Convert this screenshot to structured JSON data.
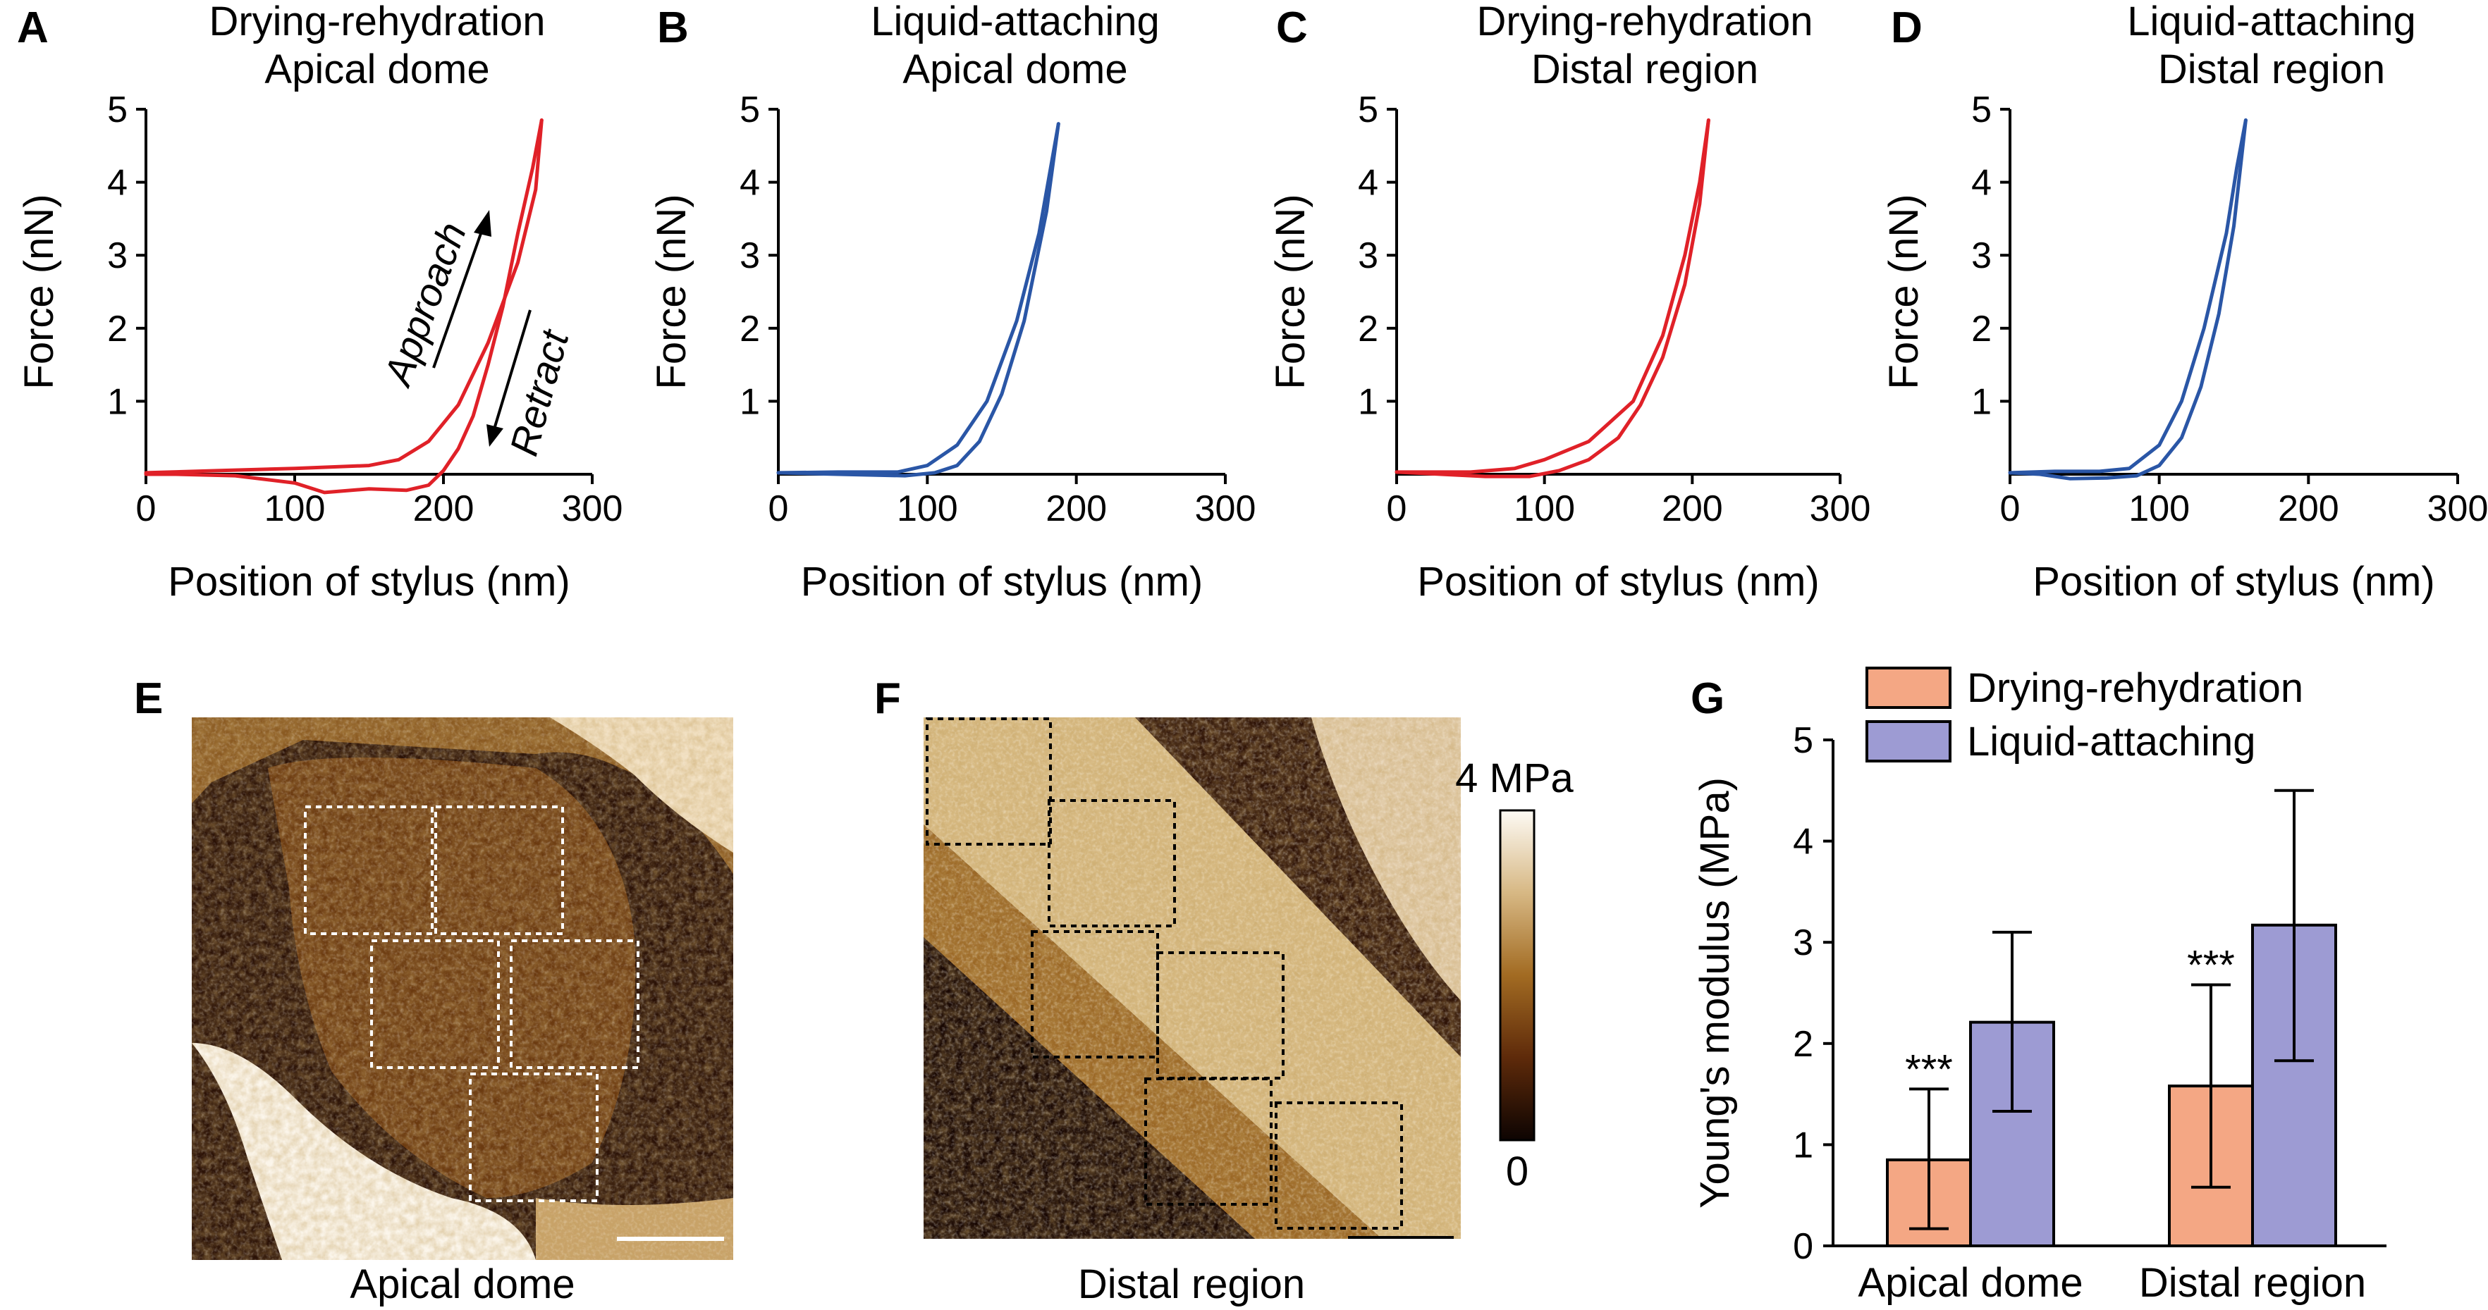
{
  "colors": {
    "drying": "#e02128",
    "liquid": "#2a56a6",
    "bar_drying": "#f4a784",
    "bar_liquid": "#9d9bd3",
    "afm_dark": "#1a0903",
    "afm_mid": "#8f5a1c",
    "afm_light": "#fbf5ea"
  },
  "labels": {
    "A": "A",
    "B": "B",
    "C": "C",
    "D": "D",
    "E": "E",
    "F": "F",
    "G": "G",
    "title_A_1": "Drying-rehydration",
    "title_A_2": "Apical dome",
    "title_B_1": "Liquid-attaching",
    "title_B_2": "Apical dome",
    "title_C_1": "Drying-rehydration",
    "title_C_2": "Distal region",
    "title_D_1": "Liquid-attaching",
    "title_D_2": "Distal region",
    "approach": "Approach",
    "retract": "Retract",
    "caption_E": "Apical dome",
    "caption_F": "Distal region",
    "colorbar_max": "4 MPa",
    "colorbar_min": "0"
  },
  "chart_data": [
    {
      "panel": "A",
      "type": "line",
      "title": [
        "Drying-rehydration",
        "Apical dome"
      ],
      "xlabel": "Position of stylus (nm)",
      "ylabel": "Force (nN)",
      "xlim": [
        0,
        300
      ],
      "ylim": [
        0,
        5
      ],
      "xticks": [
        0,
        100,
        200,
        300
      ],
      "yticks": [
        1,
        2,
        3,
        4,
        5
      ],
      "series": [
        {
          "color": "drying",
          "x": [
            0,
            50,
            100,
            150,
            170,
            190,
            210,
            230,
            250,
            262,
            266
          ],
          "y": [
            0.02,
            0.05,
            0.08,
            0.12,
            0.2,
            0.45,
            0.95,
            1.8,
            2.9,
            3.9,
            4.85
          ]
        },
        {
          "color": "drying",
          "x": [
            266,
            260,
            250,
            240,
            230,
            220,
            210,
            200,
            190,
            175,
            150,
            120,
            100,
            60,
            20,
            0
          ],
          "y": [
            4.85,
            4.2,
            3.3,
            2.3,
            1.5,
            0.8,
            0.35,
            0.05,
            -0.15,
            -0.22,
            -0.2,
            -0.25,
            -0.12,
            -0.02,
            0.0,
            0.0
          ]
        }
      ]
    },
    {
      "panel": "B",
      "type": "line",
      "title": [
        "Liquid-attaching",
        "Apical dome"
      ],
      "xlabel": "Position of stylus (nm)",
      "ylabel": "Force (nN)",
      "xlim": [
        0,
        300
      ],
      "ylim": [
        0,
        5
      ],
      "xticks": [
        0,
        100,
        200,
        300
      ],
      "yticks": [
        1,
        2,
        3,
        4,
        5
      ],
      "series": [
        {
          "color": "liquid",
          "x": [
            0,
            40,
            80,
            100,
            120,
            140,
            160,
            175,
            188
          ],
          "y": [
            0.02,
            0.03,
            0.03,
            0.12,
            0.4,
            1.0,
            2.1,
            3.3,
            4.8
          ]
        },
        {
          "color": "liquid",
          "x": [
            188,
            180,
            165,
            150,
            135,
            120,
            105,
            85,
            40,
            0
          ],
          "y": [
            4.8,
            3.6,
            2.1,
            1.1,
            0.45,
            0.12,
            0.02,
            -0.02,
            0.0,
            0.02
          ]
        }
      ]
    },
    {
      "panel": "C",
      "type": "line",
      "title": [
        "Drying-rehydration",
        "Distal region"
      ],
      "xlabel": "Position of stylus (nm)",
      "ylabel": "Force (nN)",
      "xlim": [
        0,
        300
      ],
      "ylim": [
        0,
        5
      ],
      "xticks": [
        0,
        100,
        200,
        300
      ],
      "yticks": [
        1,
        2,
        3,
        4,
        5
      ],
      "series": [
        {
          "color": "drying",
          "x": [
            0,
            50,
            80,
            100,
            130,
            160,
            180,
            195,
            205,
            211
          ],
          "y": [
            0.03,
            0.03,
            0.08,
            0.2,
            0.45,
            1.0,
            1.9,
            3.0,
            4.0,
            4.85
          ]
        },
        {
          "color": "drying",
          "x": [
            211,
            205,
            195,
            180,
            165,
            150,
            130,
            110,
            90,
            60,
            30,
            0
          ],
          "y": [
            4.85,
            3.7,
            2.6,
            1.6,
            0.95,
            0.5,
            0.2,
            0.05,
            -0.03,
            -0.03,
            0.0,
            0.03
          ]
        }
      ]
    },
    {
      "panel": "D",
      "type": "line",
      "title": [
        "Liquid-attaching",
        "Distal region"
      ],
      "xlabel": "Position of stylus (nm)",
      "ylabel": "Force (nN)",
      "xlim": [
        0,
        300
      ],
      "ylim": [
        0,
        5
      ],
      "xticks": [
        0,
        100,
        200,
        300
      ],
      "yticks": [
        1,
        2,
        3,
        4,
        5
      ],
      "series": [
        {
          "color": "liquid",
          "x": [
            0,
            30,
            60,
            80,
            100,
            115,
            130,
            145,
            152,
            158
          ],
          "y": [
            0.02,
            0.04,
            0.04,
            0.08,
            0.4,
            1.0,
            2.0,
            3.3,
            4.2,
            4.85
          ]
        },
        {
          "color": "liquid",
          "x": [
            158,
            150,
            140,
            128,
            115,
            100,
            85,
            65,
            40,
            20,
            0
          ],
          "y": [
            4.85,
            3.4,
            2.2,
            1.2,
            0.5,
            0.12,
            -0.02,
            -0.05,
            -0.06,
            0.0,
            0.02
          ]
        }
      ]
    },
    {
      "panel": "G",
      "type": "bar",
      "categories": [
        "Apical dome",
        "Distal region"
      ],
      "ylabel": "Young's modulus (MPa)",
      "ylim": [
        0,
        5
      ],
      "yticks": [
        0,
        1,
        2,
        3,
        4,
        5
      ],
      "legend": "top-right",
      "series": [
        {
          "name": "Drying-rehydration",
          "color": "bar_drying",
          "values": [
            0.85,
            1.58
          ],
          "err_low": [
            0.17,
            0.58
          ],
          "err_high": [
            1.55,
            2.58
          ],
          "sig": [
            "***",
            "***"
          ]
        },
        {
          "name": "Liquid-attaching",
          "color": "bar_liquid",
          "values": [
            2.21,
            3.17
          ],
          "err_low": [
            1.33,
            1.83
          ],
          "err_high": [
            3.1,
            4.5
          ],
          "sig": [
            "",
            ""
          ]
        }
      ]
    }
  ]
}
